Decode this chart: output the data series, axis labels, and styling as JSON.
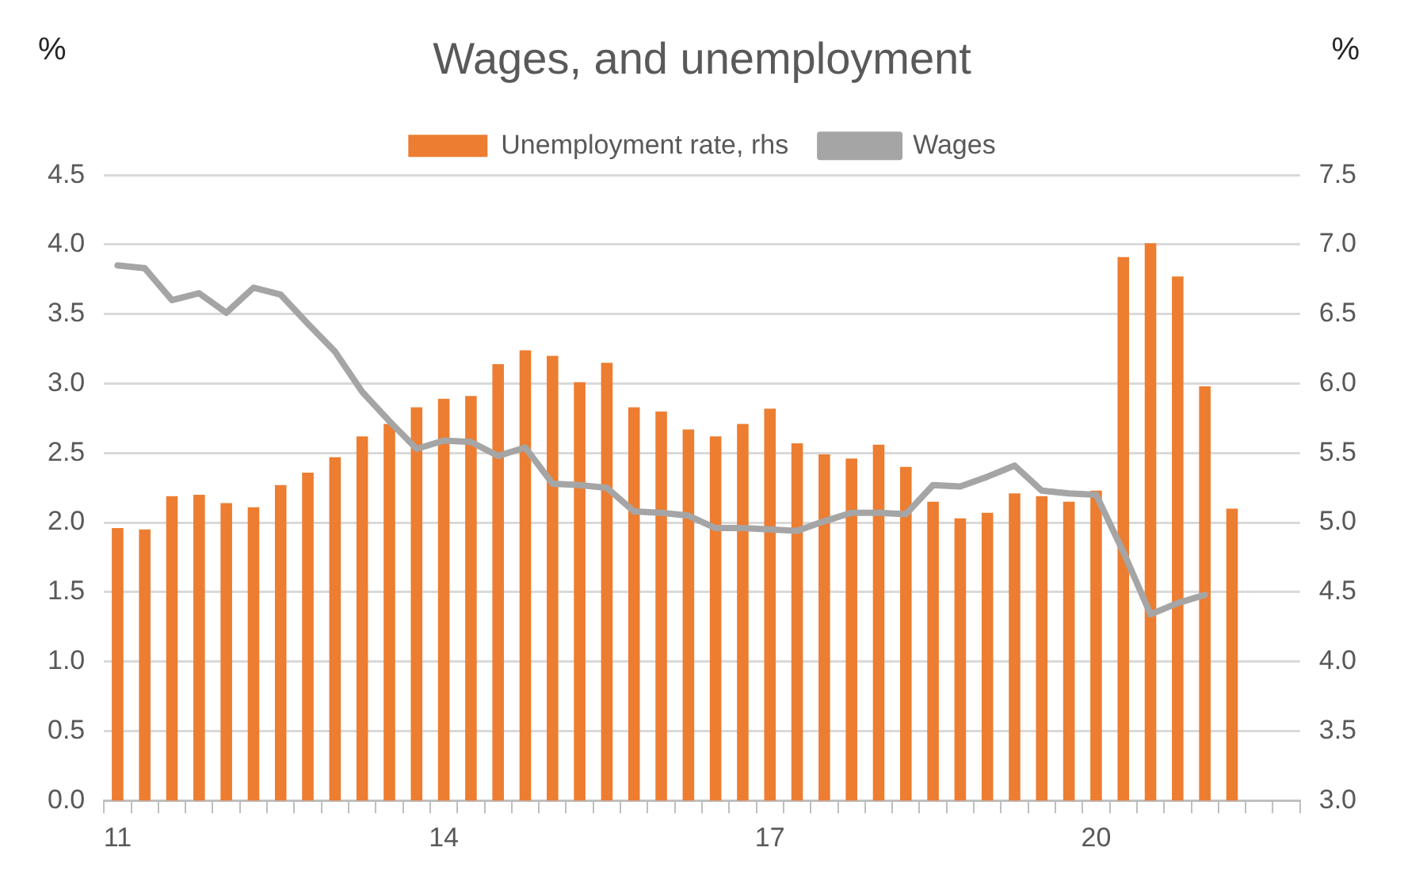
{
  "chart_data": {
    "type": "bar",
    "title": "Wages, and unemployment",
    "ylabel": "%",
    "y2label": "%",
    "categories": [
      "11",
      null,
      null,
      null,
      null,
      null,
      null,
      null,
      null,
      null,
      null,
      null,
      "14",
      null,
      null,
      null,
      null,
      null,
      null,
      null,
      null,
      null,
      null,
      null,
      "17",
      null,
      null,
      null,
      null,
      null,
      null,
      null,
      null,
      null,
      null,
      null,
      "20",
      null,
      null,
      null,
      null,
      null,
      null,
      null
    ],
    "series": [
      {
        "name": "Unemployment rate, rhs",
        "axis": "y2",
        "color": "#ed7d31",
        "values": [
          4.96,
          4.95,
          5.19,
          5.2,
          5.14,
          5.11,
          5.27,
          5.36,
          5.47,
          5.62,
          5.71,
          5.83,
          5.89,
          5.91,
          6.14,
          6.24,
          6.2,
          6.01,
          6.15,
          5.83,
          5.8,
          5.67,
          5.62,
          5.71,
          5.82,
          5.57,
          5.49,
          5.46,
          5.56,
          5.4,
          5.15,
          5.03,
          5.07,
          5.21,
          5.19,
          5.15,
          5.23,
          6.91,
          7.01,
          6.77,
          5.98,
          5.1,
          null,
          null
        ]
      },
      {
        "name": "Wages",
        "type": "line",
        "axis": "y",
        "color": "#a5a5a5",
        "values": [
          3.85,
          3.83,
          3.6,
          3.65,
          3.51,
          3.69,
          3.64,
          3.43,
          3.23,
          2.94,
          2.73,
          2.53,
          2.59,
          2.58,
          2.48,
          2.54,
          2.28,
          2.27,
          2.25,
          2.08,
          2.07,
          2.05,
          1.96,
          1.96,
          1.95,
          1.94,
          2.01,
          2.07,
          2.07,
          2.06,
          2.27,
          2.26,
          2.33,
          2.41,
          2.23,
          2.21,
          2.2,
          1.79,
          1.34,
          1.42,
          1.48,
          null,
          null,
          null
        ]
      }
    ],
    "ylim": [
      0,
      4.5
    ],
    "yticks": [
      {
        "value": 0,
        "label": "0.0"
      },
      0.5,
      {
        "value": 1,
        "label": "1.0"
      },
      1.5,
      {
        "value": 2,
        "label": "2.0"
      },
      2.5,
      {
        "value": 3,
        "label": "3.0"
      },
      3.5,
      {
        "value": 4,
        "label": "4.0"
      },
      4.5
    ],
    "y2lim": [
      3,
      7.5
    ],
    "y2ticks": [
      {
        "value": 3,
        "label": "3.0"
      },
      3.5,
      {
        "value": 4,
        "label": "4.0"
      },
      4.5,
      {
        "value": 5,
        "label": "5.0"
      },
      5.5,
      {
        "value": 6,
        "label": "6.0"
      },
      6.5,
      {
        "value": 7,
        "label": "7.0"
      },
      7.5
    ],
    "grid": "y",
    "legend": "top",
    "marker": "none",
    "line_style": "solid"
  }
}
